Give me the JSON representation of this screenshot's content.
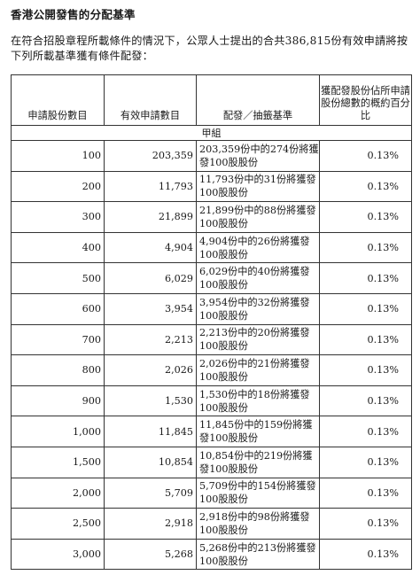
{
  "title": "香港公開發售的分配基準",
  "intro": "在符合招股章程所載條件的情況下，公眾人士提出的合共386,815份有效申請將按下列所載基準獲有條件配發：",
  "table": {
    "headers": {
      "shares_applied": "申請股份數目",
      "valid_applications": "有效申請數目",
      "basis": "配發／抽籤基準",
      "percentage": "獲配發股份佔所申請股份總數的概約百分比"
    },
    "group_label": "甲組",
    "rows": [
      {
        "shares": "100",
        "applications": "203,359",
        "basis": "203,359份中的274份將獲發100股股份",
        "pct": "0.13%"
      },
      {
        "shares": "200",
        "applications": "11,793",
        "basis": "11,793份中的31份將獲發100股股份",
        "pct": "0.13%"
      },
      {
        "shares": "300",
        "applications": "21,899",
        "basis": "21,899份中的88份將獲發100股股份",
        "pct": "0.13%"
      },
      {
        "shares": "400",
        "applications": "4,904",
        "basis": "4,904份中的26份將獲發100股股份",
        "pct": "0.13%"
      },
      {
        "shares": "500",
        "applications": "6,029",
        "basis": "6,029份中的40份將獲發100股股份",
        "pct": "0.13%"
      },
      {
        "shares": "600",
        "applications": "3,954",
        "basis": "3,954份中的32份將獲發100股股份",
        "pct": "0.13%"
      },
      {
        "shares": "700",
        "applications": "2,213",
        "basis": "2,213份中的20份將獲發100股股份",
        "pct": "0.13%"
      },
      {
        "shares": "800",
        "applications": "2,026",
        "basis": "2,026份中的21份將獲發100股股份",
        "pct": "0.13%"
      },
      {
        "shares": "900",
        "applications": "1,530",
        "basis": "1,530份中的18份將獲發100股股份",
        "pct": "0.13%"
      },
      {
        "shares": "1,000",
        "applications": "11,845",
        "basis": "11,845份中的159份將獲發100股股份",
        "pct": "0.13%"
      },
      {
        "shares": "1,500",
        "applications": "10,854",
        "basis": "10,854份中的219份將獲發100股股份",
        "pct": "0.13%"
      },
      {
        "shares": "2,000",
        "applications": "5,709",
        "basis": "5,709份中的154份將獲發100股股份",
        "pct": "0.13%"
      },
      {
        "shares": "2,500",
        "applications": "2,918",
        "basis": "2,918份中的98份將獲發100股股份",
        "pct": "0.13%"
      },
      {
        "shares": "3,000",
        "applications": "5,268",
        "basis": "5,268份中的213份將獲發100股股份",
        "pct": "0.13%"
      }
    ]
  }
}
